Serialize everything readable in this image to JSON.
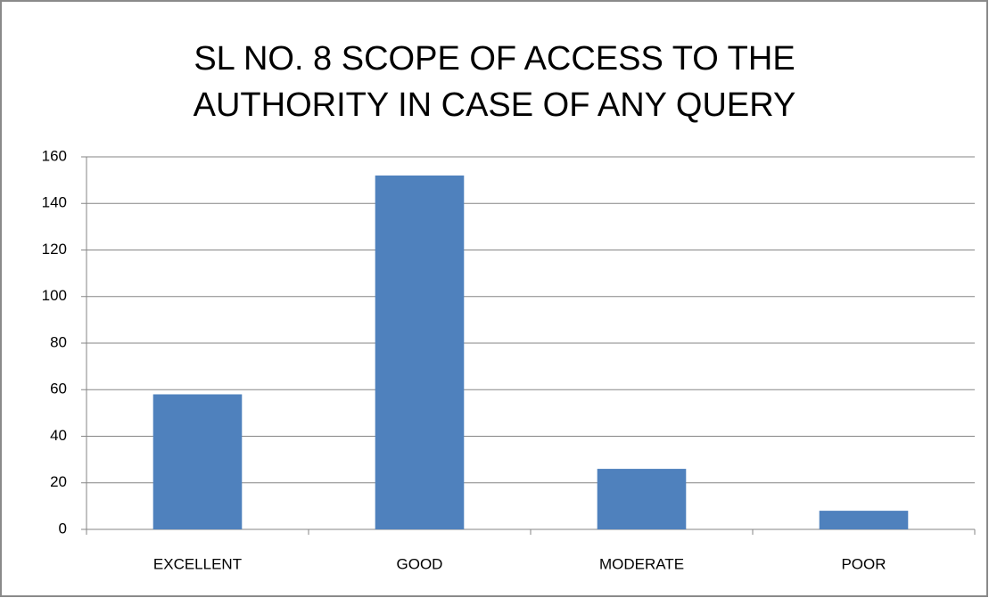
{
  "chart_data": {
    "type": "bar",
    "title": "SL NO. 8 SCOPE OF ACCESS TO THE\nAUTHORITY IN CASE OF ANY QUERY",
    "categories": [
      "EXCELLENT",
      "GOOD",
      "MODERATE",
      "POOR"
    ],
    "values": [
      58,
      152,
      26,
      8
    ],
    "color": "#4f81bd",
    "ylim": [
      0,
      160
    ],
    "yticks": [
      0,
      20,
      40,
      60,
      80,
      100,
      120,
      140,
      160
    ],
    "grid": true
  }
}
